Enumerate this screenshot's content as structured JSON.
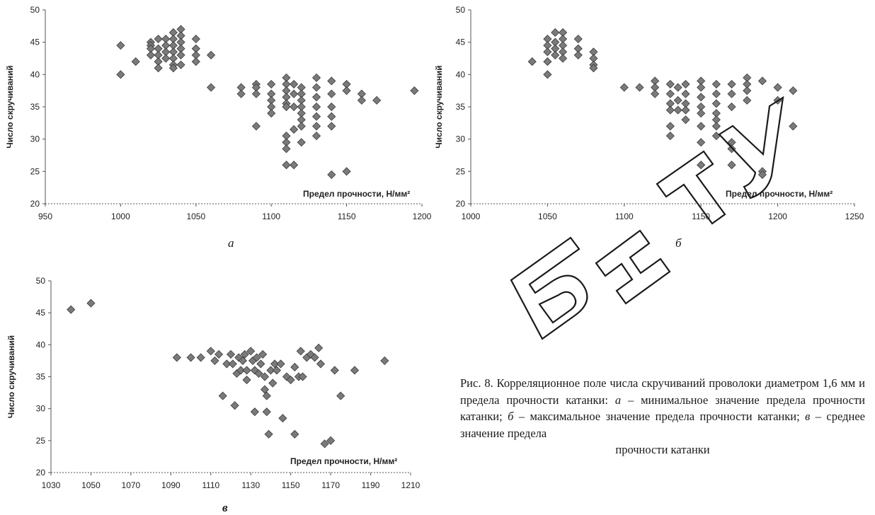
{
  "panels": [
    {
      "letter": "а"
    },
    {
      "letter": "б"
    },
    {
      "letter": "в"
    }
  ],
  "caption": {
    "parts": [
      "Рис. 8. Корреляционное поле числа скручиваний проволоки диаметром 1,6 мм и предела прочности катанки: ",
      "а",
      " – минимальное значение предела прочности катанки; ",
      "б",
      " – максимальное значение предела прочности катанки; ",
      "в",
      " – среднее значение предела"
    ],
    "last_line": "прочности катанки"
  },
  "watermark": {
    "text": "БНТУ",
    "color": "#000000"
  },
  "colors": {
    "marker": "#7a7a7a",
    "marker_stroke": "#3a3a3a",
    "axis": "#555555"
  },
  "chart_data": [
    {
      "type": "scatter",
      "xlabel": "Предел прочности, Н/мм²",
      "ylabel": "Число скручиваний",
      "xlim": [
        950,
        1200
      ],
      "ylim": [
        20,
        50
      ],
      "xticks": [
        950,
        1000,
        1050,
        1100,
        1150,
        1200
      ],
      "yticks": [
        20,
        25,
        30,
        35,
        40,
        45,
        50
      ],
      "points": [
        [
          1000,
          44.5
        ],
        [
          1000,
          40
        ],
        [
          1010,
          42
        ],
        [
          1020,
          45
        ],
        [
          1020,
          44.5
        ],
        [
          1020,
          44
        ],
        [
          1020,
          43
        ],
        [
          1025,
          45.5
        ],
        [
          1025,
          44
        ],
        [
          1025,
          43
        ],
        [
          1025,
          42
        ],
        [
          1025,
          41
        ],
        [
          1030,
          45.5
        ],
        [
          1030,
          44.5
        ],
        [
          1030,
          43.5
        ],
        [
          1030,
          42.5
        ],
        [
          1035,
          46.5
        ],
        [
          1035,
          45.5
        ],
        [
          1035,
          44.5
        ],
        [
          1035,
          43.5
        ],
        [
          1035,
          42.5
        ],
        [
          1035,
          41.5
        ],
        [
          1035,
          41
        ],
        [
          1040,
          47
        ],
        [
          1040,
          46
        ],
        [
          1040,
          45
        ],
        [
          1040,
          44
        ],
        [
          1040,
          43
        ],
        [
          1040,
          41.5
        ],
        [
          1050,
          45.5
        ],
        [
          1050,
          44
        ],
        [
          1050,
          43
        ],
        [
          1050,
          42
        ],
        [
          1060,
          43
        ],
        [
          1060,
          38
        ],
        [
          1080,
          38
        ],
        [
          1080,
          37
        ],
        [
          1090,
          38.5
        ],
        [
          1090,
          38
        ],
        [
          1090,
          37
        ],
        [
          1090,
          32
        ],
        [
          1100,
          38.5
        ],
        [
          1100,
          37
        ],
        [
          1100,
          36
        ],
        [
          1100,
          35
        ],
        [
          1100,
          34
        ],
        [
          1110,
          39.5
        ],
        [
          1110,
          38.5
        ],
        [
          1110,
          37.5
        ],
        [
          1110,
          36.5
        ],
        [
          1110,
          35.5
        ],
        [
          1110,
          35
        ],
        [
          1110,
          30.5
        ],
        [
          1110,
          29.5
        ],
        [
          1110,
          28.5
        ],
        [
          1110,
          26
        ],
        [
          1115,
          38.5
        ],
        [
          1115,
          37
        ],
        [
          1115,
          35
        ],
        [
          1115,
          31.5
        ],
        [
          1115,
          26
        ],
        [
          1120,
          38
        ],
        [
          1120,
          37
        ],
        [
          1120,
          36
        ],
        [
          1120,
          35
        ],
        [
          1120,
          34
        ],
        [
          1120,
          33
        ],
        [
          1120,
          32
        ],
        [
          1120,
          29.5
        ],
        [
          1130,
          39.5
        ],
        [
          1130,
          38
        ],
        [
          1130,
          36.5
        ],
        [
          1130,
          35
        ],
        [
          1130,
          33.5
        ],
        [
          1130,
          32
        ],
        [
          1130,
          30.5
        ],
        [
          1140,
          39
        ],
        [
          1140,
          37
        ],
        [
          1140,
          35
        ],
        [
          1140,
          33.5
        ],
        [
          1140,
          32
        ],
        [
          1140,
          24.5
        ],
        [
          1150,
          38.5
        ],
        [
          1150,
          37.5
        ],
        [
          1150,
          25
        ],
        [
          1160,
          37
        ],
        [
          1160,
          36
        ],
        [
          1170,
          36
        ],
        [
          1195,
          37.5
        ]
      ]
    },
    {
      "type": "scatter",
      "xlabel": "Предел прочности, Н/мм²",
      "ylabel": "Число скручиваний",
      "xlim": [
        1000,
        1250
      ],
      "ylim": [
        20,
        50
      ],
      "xticks": [
        1000,
        1050,
        1100,
        1150,
        1200,
        1250
      ],
      "yticks": [
        20,
        25,
        30,
        35,
        40,
        45,
        50
      ],
      "points": [
        [
          1040,
          42
        ],
        [
          1050,
          45.5
        ],
        [
          1050,
          44.5
        ],
        [
          1050,
          43.5
        ],
        [
          1050,
          42
        ],
        [
          1050,
          40
        ],
        [
          1055,
          46.5
        ],
        [
          1055,
          45
        ],
        [
          1055,
          44
        ],
        [
          1055,
          43
        ],
        [
          1060,
          46.5
        ],
        [
          1060,
          45.5
        ],
        [
          1060,
          44.5
        ],
        [
          1060,
          43.5
        ],
        [
          1060,
          42.5
        ],
        [
          1070,
          45.5
        ],
        [
          1070,
          44
        ],
        [
          1070,
          43
        ],
        [
          1080,
          43.5
        ],
        [
          1080,
          42.5
        ],
        [
          1080,
          41.5
        ],
        [
          1080,
          41
        ],
        [
          1100,
          38
        ],
        [
          1110,
          38
        ],
        [
          1120,
          39
        ],
        [
          1120,
          38
        ],
        [
          1120,
          37
        ],
        [
          1130,
          38.5
        ],
        [
          1130,
          37
        ],
        [
          1130,
          35.5
        ],
        [
          1130,
          34.5
        ],
        [
          1130,
          32
        ],
        [
          1130,
          30.5
        ],
        [
          1135,
          38
        ],
        [
          1135,
          36
        ],
        [
          1135,
          34.5
        ],
        [
          1140,
          38.5
        ],
        [
          1140,
          37
        ],
        [
          1140,
          35.5
        ],
        [
          1140,
          34.5
        ],
        [
          1140,
          33
        ],
        [
          1150,
          39
        ],
        [
          1150,
          38
        ],
        [
          1150,
          36.5
        ],
        [
          1150,
          35
        ],
        [
          1150,
          34
        ],
        [
          1150,
          32
        ],
        [
          1150,
          29.5
        ],
        [
          1150,
          26
        ],
        [
          1160,
          38.5
        ],
        [
          1160,
          37
        ],
        [
          1160,
          35.5
        ],
        [
          1160,
          34
        ],
        [
          1160,
          33
        ],
        [
          1160,
          32
        ],
        [
          1160,
          30.5
        ],
        [
          1170,
          38.5
        ],
        [
          1170,
          37
        ],
        [
          1170,
          35
        ],
        [
          1170,
          29.5
        ],
        [
          1170,
          28.5
        ],
        [
          1170,
          26
        ],
        [
          1180,
          39.5
        ],
        [
          1180,
          38.5
        ],
        [
          1180,
          37.5
        ],
        [
          1180,
          36
        ],
        [
          1190,
          39
        ],
        [
          1190,
          25
        ],
        [
          1190,
          24.5
        ],
        [
          1200,
          38
        ],
        [
          1200,
          36
        ],
        [
          1210,
          37.5
        ],
        [
          1210,
          32
        ]
      ]
    },
    {
      "type": "scatter",
      "xlabel": "Предел прочности, Н/мм²",
      "ylabel": "Число скручиваний",
      "xlim": [
        1030,
        1210
      ],
      "ylim": [
        20,
        50
      ],
      "xticks": [
        1030,
        1050,
        1070,
        1090,
        1110,
        1130,
        1150,
        1170,
        1190,
        1210
      ],
      "yticks": [
        20,
        25,
        30,
        35,
        40,
        45,
        50
      ],
      "points": [
        [
          1040,
          45.5
        ],
        [
          1050,
          46.5
        ],
        [
          1093,
          38
        ],
        [
          1100,
          38
        ],
        [
          1105,
          38
        ],
        [
          1110,
          39
        ],
        [
          1112,
          37.5
        ],
        [
          1114,
          38.5
        ],
        [
          1116,
          32
        ],
        [
          1118,
          37
        ],
        [
          1120,
          38.5
        ],
        [
          1121,
          37
        ],
        [
          1122,
          30.5
        ],
        [
          1123,
          35.5
        ],
        [
          1124,
          38
        ],
        [
          1125,
          36
        ],
        [
          1126,
          37.5
        ],
        [
          1127,
          38.5
        ],
        [
          1128,
          36
        ],
        [
          1128,
          34.5
        ],
        [
          1130,
          39
        ],
        [
          1131,
          37.5
        ],
        [
          1132,
          36
        ],
        [
          1132,
          29.5
        ],
        [
          1133,
          38
        ],
        [
          1134,
          35.5
        ],
        [
          1135,
          37
        ],
        [
          1136,
          38.5
        ],
        [
          1137,
          35
        ],
        [
          1137,
          33
        ],
        [
          1138,
          32
        ],
        [
          1138,
          29.5
        ],
        [
          1139,
          26
        ],
        [
          1140,
          36
        ],
        [
          1141,
          34
        ],
        [
          1142,
          37
        ],
        [
          1143,
          36
        ],
        [
          1145,
          37
        ],
        [
          1146,
          28.5
        ],
        [
          1148,
          35
        ],
        [
          1150,
          34.5
        ],
        [
          1152,
          36.5
        ],
        [
          1152,
          26
        ],
        [
          1154,
          35
        ],
        [
          1155,
          39
        ],
        [
          1156,
          35
        ],
        [
          1158,
          38
        ],
        [
          1160,
          38.5
        ],
        [
          1162,
          38
        ],
        [
          1164,
          39.5
        ],
        [
          1165,
          37
        ],
        [
          1167,
          24.5
        ],
        [
          1170,
          25
        ],
        [
          1172,
          36
        ],
        [
          1175,
          32
        ],
        [
          1182,
          36
        ],
        [
          1197,
          37.5
        ]
      ]
    }
  ]
}
